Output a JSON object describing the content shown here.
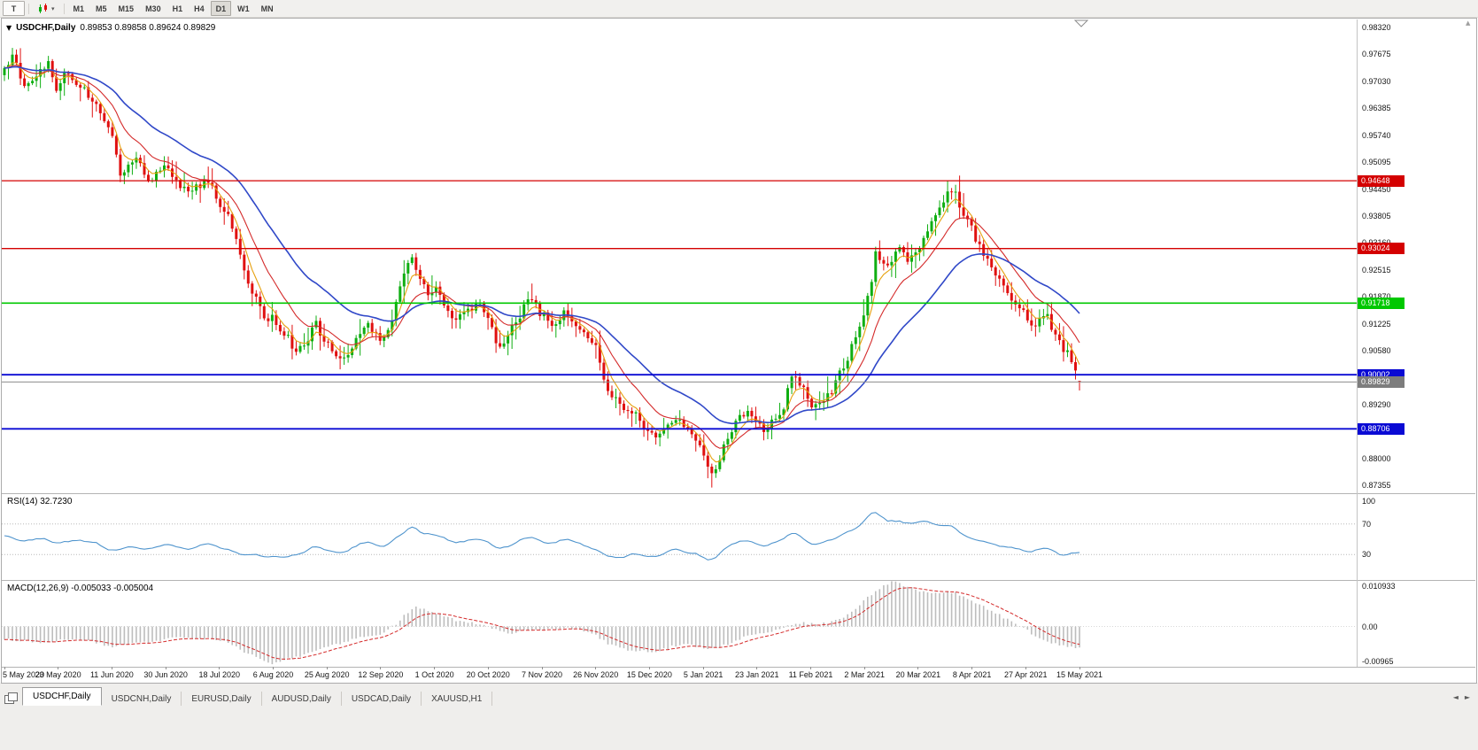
{
  "toolbar": {
    "chart_type_button": "T",
    "timeframes": [
      "M1",
      "M5",
      "M15",
      "M30",
      "H1",
      "H4",
      "D1",
      "W1",
      "MN"
    ],
    "active_timeframe": "D1"
  },
  "icons": {
    "title_arrow": "▼",
    "dropdown_caret": "▾",
    "tab_scroll_left": "◄",
    "tab_scroll_right": "►",
    "scroll_up": "▲"
  },
  "chart": {
    "symbol": "USDCHF,Daily",
    "ohlc": "0.89853 0.89858 0.89624 0.89829",
    "open": "0.89853",
    "high": "0.89858",
    "low": "0.89624",
    "close": "0.89829"
  },
  "price_axis": {
    "labels": [
      "0.98320",
      "0.97675",
      "0.97030",
      "0.96385",
      "0.95740",
      "0.95095",
      "0.94450",
      "0.93805",
      "0.93160",
      "0.92515",
      "0.91870",
      "0.91225",
      "0.90580",
      "0.89935",
      "0.89290",
      "0.88645",
      "0.88000",
      "0.87355"
    ],
    "top_value": 0.9832,
    "step": 0.00645
  },
  "hlines": [
    {
      "label": "0.94648",
      "value": 0.94648,
      "color": "#d40000"
    },
    {
      "label": "0.93024",
      "value": 0.93024,
      "color": "#d40000"
    },
    {
      "label": "0.91718",
      "value": 0.91718,
      "color": "#00c800"
    },
    {
      "label": "0.90002",
      "value": 0.90002,
      "color": "#0a0ad4"
    },
    {
      "label": "0.88706",
      "value": 0.88706,
      "color": "#0a0ad4"
    }
  ],
  "current_price": {
    "label": "0.89829",
    "value": 0.89829,
    "color": "#7d7d7d"
  },
  "rsi": {
    "title": "RSI(14)",
    "value": "32.7230",
    "levels": [
      "100",
      "70",
      "30"
    ],
    "level_values": [
      100,
      70,
      30
    ]
  },
  "macd": {
    "title": "MACD(12,26,9)",
    "values": "-0.005033 -0.005004",
    "axis": [
      "0.010933",
      "0.00",
      "-0.00965"
    ],
    "max": 0.010933,
    "min": -0.00965
  },
  "dates": [
    "5 May 2020",
    "23 May 2020",
    "11 Jun 2020",
    "30 Jun 2020",
    "18 Jul 2020",
    "6 Aug 2020",
    "25 Aug 2020",
    "12 Sep 2020",
    "1 Oct 2020",
    "20 Oct 2020",
    "7 Nov 2020",
    "26 Nov 2020",
    "15 Dec 2020",
    "5 Jan 2021",
    "23 Jan 2021",
    "11 Feb 2021",
    "2 Mar 2021",
    "20 Mar 2021",
    "8 Apr 2021",
    "27 Apr 2021",
    "15 May 2021"
  ],
  "tabs": [
    {
      "label": "USDCHF,Daily",
      "active": true
    },
    {
      "label": "USDCNH,Daily",
      "active": false
    },
    {
      "label": "EURUSD,Daily",
      "active": false
    },
    {
      "label": "AUDUSD,Daily",
      "active": false
    },
    {
      "label": "USDCAD,Daily",
      "active": false
    },
    {
      "label": "XAUUSD,H1",
      "active": false
    }
  ],
  "colors": {
    "candle_up": "#0fae12",
    "candle_down": "#e01010",
    "ma_fast": "#e6a10f",
    "ma_mid": "#d42a2a",
    "ma_slow": "#3048c8",
    "rsi_line": "#4f94cd",
    "macd_hist": "#bdbdbd",
    "macd_signal": "#d42a2a",
    "level_dotted": "#b8b8b8"
  },
  "chart_data": {
    "type": "candlestick",
    "symbol": "USDCHF",
    "timeframe": "Daily",
    "title": "USDCHF,Daily",
    "candle_count": 270,
    "x_range": [
      "5 May 2020",
      "15 May 2021"
    ],
    "y_range": [
      0.87355,
      0.9832
    ],
    "last_candle": {
      "o": 0.89853,
      "h": 0.89858,
      "l": 0.89624,
      "c": 0.89829
    },
    "horizontal_levels": [
      0.94648,
      0.93024,
      0.91718,
      0.90002,
      0.88706
    ],
    "price_keypoints": [
      [
        0,
        0.9725
      ],
      [
        2,
        0.9762
      ],
      [
        5,
        0.9695
      ],
      [
        8,
        0.972
      ],
      [
        11,
        0.9748
      ],
      [
        13,
        0.969
      ],
      [
        15,
        0.9725
      ],
      [
        18,
        0.97
      ],
      [
        21,
        0.967
      ],
      [
        24,
        0.963
      ],
      [
        27,
        0.9575
      ],
      [
        29,
        0.948
      ],
      [
        31,
        0.9495
      ],
      [
        33,
        0.952
      ],
      [
        36,
        0.9465
      ],
      [
        40,
        0.9495
      ],
      [
        43,
        0.947
      ],
      [
        46,
        0.943
      ],
      [
        49,
        0.9455
      ],
      [
        52,
        0.946
      ],
      [
        54,
        0.94
      ],
      [
        56,
        0.9385
      ],
      [
        58,
        0.932
      ],
      [
        60,
        0.925
      ],
      [
        63,
        0.918
      ],
      [
        65,
        0.914
      ],
      [
        67,
        0.9135
      ],
      [
        70,
        0.91
      ],
      [
        73,
        0.906
      ],
      [
        76,
        0.909
      ],
      [
        78,
        0.912
      ],
      [
        80,
        0.9085
      ],
      [
        83,
        0.905
      ],
      [
        85,
        0.904
      ],
      [
        88,
        0.909
      ],
      [
        91,
        0.912
      ],
      [
        94,
        0.9085
      ],
      [
        97,
        0.913
      ],
      [
        100,
        0.924
      ],
      [
        102,
        0.9285
      ],
      [
        104,
        0.923
      ],
      [
        106,
        0.92
      ],
      [
        108,
        0.9205
      ],
      [
        111,
        0.915
      ],
      [
        114,
        0.9135
      ],
      [
        117,
        0.916
      ],
      [
        119,
        0.9175
      ],
      [
        121,
        0.914
      ],
      [
        123,
        0.907
      ],
      [
        125,
        0.9085
      ],
      [
        128,
        0.912
      ],
      [
        130,
        0.9165
      ],
      [
        132,
        0.9185
      ],
      [
        134,
        0.915
      ],
      [
        137,
        0.912
      ],
      [
        140,
        0.9145
      ],
      [
        143,
        0.9125
      ],
      [
        146,
        0.9095
      ],
      [
        148,
        0.9075
      ],
      [
        150,
        0.899
      ],
      [
        152,
        0.895
      ],
      [
        155,
        0.892
      ],
      [
        158,
        0.8905
      ],
      [
        161,
        0.887
      ],
      [
        164,
        0.885
      ],
      [
        166,
        0.888
      ],
      [
        168,
        0.89
      ],
      [
        170,
        0.8875
      ],
      [
        173,
        0.8845
      ],
      [
        175,
        0.8815
      ],
      [
        177,
        0.8765
      ],
      [
        179,
        0.88
      ],
      [
        181,
        0.8855
      ],
      [
        184,
        0.8895
      ],
      [
        186,
        0.8905
      ],
      [
        188,
        0.888
      ],
      [
        191,
        0.887
      ],
      [
        193,
        0.8895
      ],
      [
        195,
        0.892
      ],
      [
        197,
        0.8995
      ],
      [
        199,
        0.8985
      ],
      [
        201,
        0.8935
      ],
      [
        203,
        0.892
      ],
      [
        205,
        0.8935
      ],
      [
        207,
        0.896
      ],
      [
        209,
        0.9
      ],
      [
        211,
        0.904
      ],
      [
        213,
        0.909
      ],
      [
        215,
        0.915
      ],
      [
        217,
        0.923
      ],
      [
        218,
        0.929
      ],
      [
        220,
        0.926
      ],
      [
        222,
        0.928
      ],
      [
        224,
        0.93
      ],
      [
        226,
        0.928
      ],
      [
        228,
        0.929
      ],
      [
        230,
        0.933
      ],
      [
        232,
        0.936
      ],
      [
        234,
        0.9395
      ],
      [
        236,
        0.9445
      ],
      [
        238,
        0.943
      ],
      [
        240,
        0.939
      ],
      [
        242,
        0.935
      ],
      [
        244,
        0.931
      ],
      [
        246,
        0.928
      ],
      [
        248,
        0.9245
      ],
      [
        250,
        0.922
      ],
      [
        252,
        0.9185
      ],
      [
        255,
        0.915
      ],
      [
        257,
        0.912
      ],
      [
        259,
        0.913
      ],
      [
        261,
        0.914
      ],
      [
        263,
        0.909
      ],
      [
        265,
        0.9065
      ],
      [
        267,
        0.904
      ],
      [
        268,
        0.901
      ],
      [
        269,
        0.89829
      ]
    ],
    "rsi_keypoints": [
      [
        0,
        55
      ],
      [
        5,
        48
      ],
      [
        10,
        52
      ],
      [
        13,
        45
      ],
      [
        18,
        50
      ],
      [
        24,
        42
      ],
      [
        27,
        33
      ],
      [
        31,
        40
      ],
      [
        36,
        36
      ],
      [
        40,
        44
      ],
      [
        46,
        38
      ],
      [
        52,
        44
      ],
      [
        56,
        36
      ],
      [
        60,
        30
      ],
      [
        64,
        27
      ],
      [
        67,
        30
      ],
      [
        71,
        27
      ],
      [
        74,
        32
      ],
      [
        78,
        40
      ],
      [
        81,
        34
      ],
      [
        85,
        32
      ],
      [
        88,
        42
      ],
      [
        91,
        46
      ],
      [
        94,
        40
      ],
      [
        97,
        48
      ],
      [
        100,
        60
      ],
      [
        102,
        68
      ],
      [
        104,
        56
      ],
      [
        108,
        55
      ],
      [
        111,
        48
      ],
      [
        114,
        45
      ],
      [
        117,
        50
      ],
      [
        121,
        45
      ],
      [
        123,
        36
      ],
      [
        126,
        40
      ],
      [
        130,
        50
      ],
      [
        132,
        54
      ],
      [
        134,
        48
      ],
      [
        137,
        44
      ],
      [
        140,
        50
      ],
      [
        143,
        46
      ],
      [
        146,
        40
      ],
      [
        148,
        37
      ],
      [
        151,
        28
      ],
      [
        155,
        26
      ],
      [
        158,
        30
      ],
      [
        161,
        27
      ],
      [
        164,
        26
      ],
      [
        166,
        34
      ],
      [
        168,
        38
      ],
      [
        170,
        33
      ],
      [
        173,
        29
      ],
      [
        175,
        26
      ],
      [
        177,
        23
      ],
      [
        179,
        32
      ],
      [
        181,
        42
      ],
      [
        184,
        48
      ],
      [
        186,
        50
      ],
      [
        188,
        44
      ],
      [
        191,
        42
      ],
      [
        193,
        47
      ],
      [
        195,
        50
      ],
      [
        197,
        60
      ],
      [
        199,
        57
      ],
      [
        201,
        48
      ],
      [
        203,
        44
      ],
      [
        205,
        47
      ],
      [
        207,
        50
      ],
      [
        209,
        55
      ],
      [
        211,
        60
      ],
      [
        213,
        65
      ],
      [
        215,
        72
      ],
      [
        217,
        85
      ],
      [
        218,
        88
      ],
      [
        220,
        76
      ],
      [
        222,
        72
      ],
      [
        224,
        76
      ],
      [
        226,
        70
      ],
      [
        228,
        72
      ],
      [
        230,
        76
      ],
      [
        232,
        70
      ],
      [
        234,
        66
      ],
      [
        236,
        70
      ],
      [
        238,
        62
      ],
      [
        240,
        56
      ],
      [
        242,
        52
      ],
      [
        244,
        48
      ],
      [
        246,
        45
      ],
      [
        248,
        42
      ],
      [
        250,
        40
      ],
      [
        252,
        38
      ],
      [
        255,
        35
      ],
      [
        257,
        32
      ],
      [
        259,
        36
      ],
      [
        261,
        40
      ],
      [
        263,
        32
      ],
      [
        265,
        29
      ],
      [
        267,
        34
      ],
      [
        268,
        30
      ],
      [
        269,
        32.72
      ]
    ],
    "macd_keypoints": [
      [
        0,
        -0.003
      ],
      [
        5,
        -0.0035
      ],
      [
        10,
        -0.004
      ],
      [
        15,
        -0.003
      ],
      [
        20,
        -0.0032
      ],
      [
        24,
        -0.004
      ],
      [
        27,
        -0.005
      ],
      [
        31,
        -0.0042
      ],
      [
        36,
        -0.0038
      ],
      [
        40,
        -0.003
      ],
      [
        44,
        -0.0028
      ],
      [
        48,
        -0.003
      ],
      [
        52,
        -0.0028
      ],
      [
        56,
        -0.004
      ],
      [
        60,
        -0.006
      ],
      [
        64,
        -0.0078
      ],
      [
        67,
        -0.009
      ],
      [
        70,
        -0.008
      ],
      [
        74,
        -0.007
      ],
      [
        78,
        -0.0055
      ],
      [
        82,
        -0.0045
      ],
      [
        86,
        -0.0035
      ],
      [
        90,
        -0.0025
      ],
      [
        94,
        -0.002
      ],
      [
        98,
        0.0005
      ],
      [
        101,
        0.0035
      ],
      [
        103,
        0.0045
      ],
      [
        106,
        0.0038
      ],
      [
        108,
        0.003
      ],
      [
        111,
        0.0022
      ],
      [
        114,
        0.0012
      ],
      [
        117,
        0.0008
      ],
      [
        121,
        0.0002
      ],
      [
        124,
        -0.0012
      ],
      [
        127,
        -0.0018
      ],
      [
        130,
        -0.001
      ],
      [
        133,
        -0.0006
      ],
      [
        136,
        -0.0008
      ],
      [
        139,
        -0.0004
      ],
      [
        142,
        -0.0004
      ],
      [
        145,
        -0.001
      ],
      [
        148,
        -0.0022
      ],
      [
        151,
        -0.004
      ],
      [
        154,
        -0.0052
      ],
      [
        157,
        -0.0058
      ],
      [
        161,
        -0.006
      ],
      [
        164,
        -0.0058
      ],
      [
        167,
        -0.0048
      ],
      [
        170,
        -0.0042
      ],
      [
        173,
        -0.0048
      ],
      [
        176,
        -0.0055
      ],
      [
        179,
        -0.005
      ],
      [
        182,
        -0.0038
      ],
      [
        185,
        -0.0025
      ],
      [
        188,
        -0.0018
      ],
      [
        191,
        -0.0015
      ],
      [
        194,
        -0.0008
      ],
      [
        197,
        0.0005
      ],
      [
        200,
        0.0008
      ],
      [
        203,
        0.0005
      ],
      [
        206,
        0.0008
      ],
      [
        209,
        0.0018
      ],
      [
        212,
        0.0035
      ],
      [
        215,
        0.006
      ],
      [
        218,
        0.0085
      ],
      [
        220,
        0.0098
      ],
      [
        222,
        0.0108
      ],
      [
        224,
        0.0102
      ],
      [
        226,
        0.0096
      ],
      [
        228,
        0.0088
      ],
      [
        230,
        0.0082
      ],
      [
        232,
        0.008
      ],
      [
        234,
        0.0082
      ],
      [
        236,
        0.0085
      ],
      [
        238,
        0.008
      ],
      [
        240,
        0.0072
      ],
      [
        242,
        0.0062
      ],
      [
        244,
        0.0052
      ],
      [
        246,
        0.0042
      ],
      [
        248,
        0.0032
      ],
      [
        250,
        0.0022
      ],
      [
        252,
        0.0012
      ],
      [
        254,
        0.0002
      ],
      [
        256,
        -0.001
      ],
      [
        258,
        -0.0022
      ],
      [
        260,
        -0.0032
      ],
      [
        262,
        -0.004
      ],
      [
        264,
        -0.0045
      ],
      [
        266,
        -0.0048
      ],
      [
        268,
        -0.005
      ],
      [
        269,
        -0.005033
      ]
    ]
  }
}
